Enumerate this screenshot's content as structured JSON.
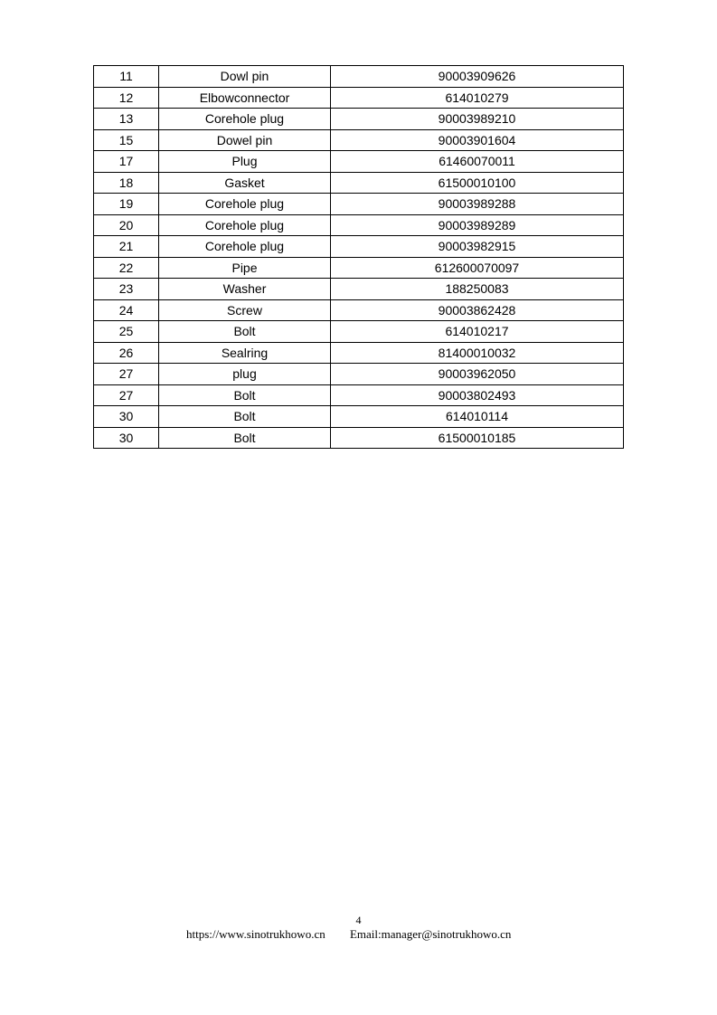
{
  "table": {
    "rows": [
      [
        "11",
        "Dowl pin",
        "90003909626"
      ],
      [
        "12",
        "Elbowconnector",
        "614010279"
      ],
      [
        "13",
        "Corehole plug",
        "90003989210"
      ],
      [
        "15",
        "Dowel pin",
        "90003901604"
      ],
      [
        "17",
        "Plug",
        "61460070011"
      ],
      [
        "18",
        "Gasket",
        "61500010100"
      ],
      [
        "19",
        "Corehole plug",
        "90003989288"
      ],
      [
        "20",
        "Corehole plug",
        "90003989289"
      ],
      [
        "21",
        "Corehole plug",
        "90003982915"
      ],
      [
        "22",
        "Pipe",
        "612600070097"
      ],
      [
        "23",
        "Washer",
        "188250083"
      ],
      [
        "24",
        "Screw",
        "90003862428"
      ],
      [
        "25",
        "Bolt",
        "614010217"
      ],
      [
        "26",
        "Sealring",
        "81400010032"
      ],
      [
        "27",
        "plug",
        "90003962050"
      ],
      [
        "27",
        "Bolt",
        "90003802493"
      ],
      [
        "30",
        "Bolt",
        "614010114"
      ],
      [
        "30",
        "Bolt",
        "61500010185"
      ]
    ]
  },
  "footer": {
    "page_number": "4",
    "website": "https://www.sinotrukhowo.cn",
    "email": "Email:manager@sinotrukhowo.cn"
  }
}
